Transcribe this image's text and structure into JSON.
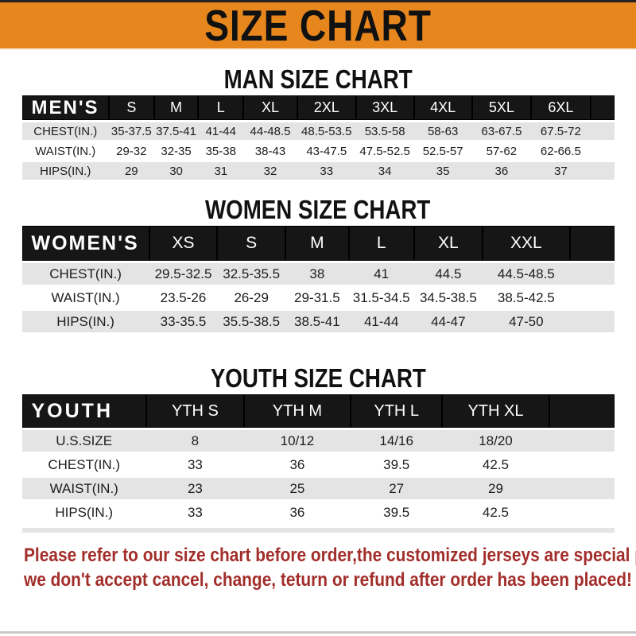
{
  "banner": {
    "title": "SIZE CHART"
  },
  "colors": {
    "banner_bg": "#e8861e",
    "table_header_bg": "#161616",
    "row_stripe_gray": "#e4e4e4",
    "note_red": "#a22e2a"
  },
  "sections": [
    {
      "id": "men",
      "title": "MAN SIZE CHART",
      "group_label": "MEN'S",
      "sizes": [
        "S",
        "M",
        "L",
        "XL",
        "2XL",
        "3XL",
        "4XL",
        "5XL",
        "6XL"
      ],
      "rows": [
        {
          "label": "CHEST(IN.)",
          "values": [
            "35-37.5",
            "37.5-41",
            "41-44",
            "44-48.5",
            "48.5-53.5",
            "53.5-58",
            "58-63",
            "63-67.5",
            "67.5-72"
          ]
        },
        {
          "label": "WAIST(IN.)",
          "values": [
            "29-32",
            "32-35",
            "35-38",
            "38-43",
            "43-47.5",
            "47.5-52.5",
            "52.5-57",
            "57-62",
            "62-66.5"
          ]
        },
        {
          "label": "HIPS(IN.)",
          "values": [
            "29",
            "30",
            "31",
            "32",
            "33",
            "34",
            "35",
            "36",
            "37"
          ]
        }
      ]
    },
    {
      "id": "women",
      "title": "WOMEN SIZE CHART",
      "group_label": "WOMEN'S",
      "sizes": [
        "XS",
        "S",
        "M",
        "L",
        "XL",
        "XXL"
      ],
      "rows": [
        {
          "label": "CHEST(IN.)",
          "values": [
            "29.5-32.5",
            "32.5-35.5",
            "38",
            "41",
            "44.5",
            "44.5-48.5"
          ]
        },
        {
          "label": "WAIST(IN.)",
          "values": [
            "23.5-26",
            "26-29",
            "29-31.5",
            "31.5-34.5",
            "34.5-38.5",
            "38.5-42.5"
          ]
        },
        {
          "label": "HIPS(IN.)",
          "values": [
            "33-35.5",
            "35.5-38.5",
            "38.5-41",
            "41-44",
            "44-47",
            "47-50"
          ]
        }
      ]
    },
    {
      "id": "youth",
      "title": "YOUTH SIZE CHART",
      "group_label": "YOUTH",
      "sizes": [
        "YTH S",
        "YTH M",
        "YTH L",
        "YTH XL"
      ],
      "rows": [
        {
          "label": "U.S.SIZE",
          "values": [
            "8",
            "10/12",
            "14/16",
            "18/20"
          ]
        },
        {
          "label": "CHEST(IN.)",
          "values": [
            "33",
            "36",
            "39.5",
            "42.5"
          ]
        },
        {
          "label": "WAIST(IN.)",
          "values": [
            "23",
            "25",
            "27",
            "29"
          ]
        },
        {
          "label": "HIPS(IN.)",
          "values": [
            "33",
            "36",
            "39.5",
            "42.5"
          ]
        }
      ]
    }
  ],
  "footer": {
    "line1": "Please refer to our size chart before order,the customized jerseys are special products,",
    "line2": "we don't accept cancel, change, teturn or refund after order has been placed!"
  }
}
